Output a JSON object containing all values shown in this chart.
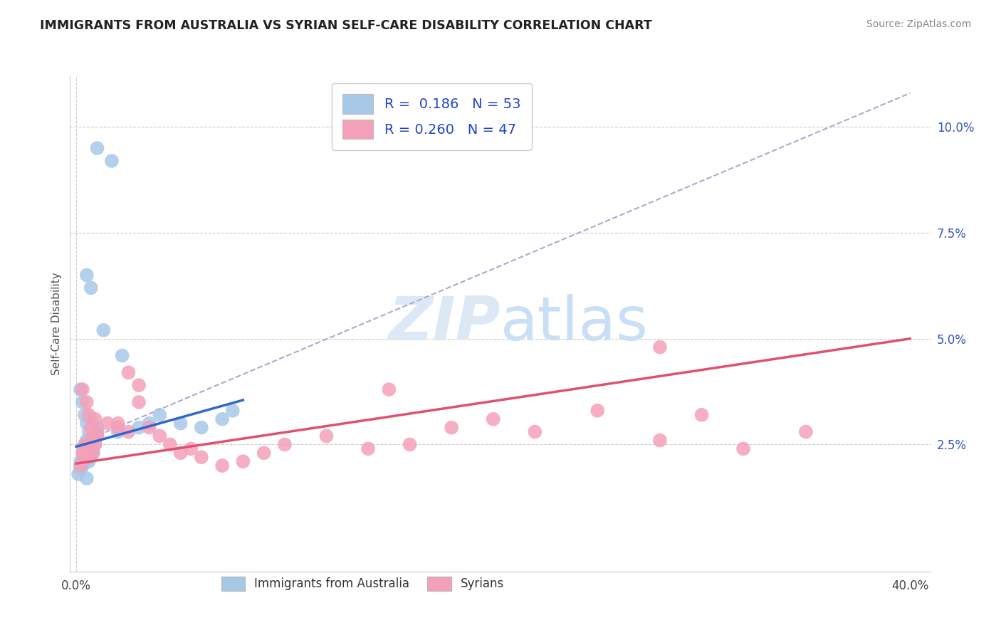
{
  "title": "IMMIGRANTS FROM AUSTRALIA VS SYRIAN SELF-CARE DISABILITY CORRELATION CHART",
  "source": "Source: ZipAtlas.com",
  "ylabel": "Self-Care Disability",
  "legend_label_1": "Immigrants from Australia",
  "legend_label_2": "Syrians",
  "color1": "#a8c8e8",
  "color2": "#f4a0b8",
  "trendline1_color": "#3366cc",
  "trendline2_color": "#e05070",
  "dash_color": "#aaaacc",
  "watermark_color": "#dde8f5",
  "background_color": "#ffffff",
  "grid_color": "#cccccc",
  "ytick_color": "#3355bb",
  "aus_x": [
    1.0,
    1.7,
    0.5,
    0.7,
    1.3,
    2.2,
    0.2,
    0.3,
    0.4,
    0.5,
    0.6,
    0.7,
    0.8,
    0.9,
    1.0,
    0.3,
    0.4,
    0.5,
    0.5,
    0.6,
    0.6,
    0.7,
    0.8,
    0.9,
    1.0,
    0.2,
    0.3,
    0.4,
    0.5,
    0.6,
    0.7,
    0.8,
    0.9,
    1.0,
    0.2,
    0.3,
    0.4,
    0.5,
    0.6,
    0.7,
    2.0,
    3.0,
    3.5,
    4.0,
    5.0,
    6.0,
    7.0,
    7.5,
    0.1,
    0.2,
    0.3,
    0.4,
    0.5
  ],
  "aus_y": [
    9.5,
    9.2,
    6.5,
    6.2,
    5.2,
    4.6,
    3.8,
    3.5,
    3.2,
    3.0,
    2.8,
    3.1,
    2.9,
    2.7,
    2.9,
    2.3,
    2.5,
    2.4,
    2.6,
    2.4,
    2.2,
    2.5,
    2.3,
    2.6,
    2.8,
    2.0,
    2.1,
    2.3,
    2.2,
    2.1,
    2.4,
    2.3,
    2.5,
    2.7,
    2.1,
    2.0,
    2.2,
    2.3,
    2.4,
    2.5,
    2.8,
    2.9,
    3.0,
    3.2,
    3.0,
    2.9,
    3.1,
    3.3,
    1.8,
    1.9,
    2.0,
    2.1,
    1.7
  ],
  "syr_x": [
    2.5,
    3.0,
    0.3,
    0.5,
    0.6,
    0.7,
    0.8,
    0.9,
    1.0,
    0.3,
    0.4,
    0.5,
    0.6,
    0.7,
    0.8,
    0.9,
    1.0,
    2.0,
    2.5,
    3.0,
    3.5,
    4.0,
    4.5,
    5.0,
    5.5,
    6.0,
    7.0,
    8.0,
    9.0,
    10.0,
    12.0,
    14.0,
    15.0,
    16.0,
    18.0,
    20.0,
    22.0,
    25.0,
    28.0,
    30.0,
    32.0,
    35.0,
    0.2,
    0.4,
    1.5,
    2.0,
    28.0
  ],
  "syr_y": [
    4.2,
    3.9,
    3.8,
    3.5,
    3.2,
    2.9,
    2.7,
    3.1,
    2.8,
    2.3,
    2.5,
    2.4,
    2.2,
    2.6,
    2.3,
    2.5,
    2.7,
    3.0,
    2.8,
    3.5,
    2.9,
    2.7,
    2.5,
    2.3,
    2.4,
    2.2,
    2.0,
    2.1,
    2.3,
    2.5,
    2.7,
    2.4,
    3.8,
    2.5,
    2.9,
    3.1,
    2.8,
    3.3,
    2.6,
    3.2,
    2.4,
    2.8,
    2.0,
    2.2,
    3.0,
    2.9,
    4.8
  ],
  "xlim": [
    -0.3,
    41
  ],
  "ylim": [
    -0.5,
    11.2
  ],
  "yticks": [
    2.5,
    5.0,
    7.5,
    10.0
  ],
  "xticks": [
    0,
    40
  ]
}
